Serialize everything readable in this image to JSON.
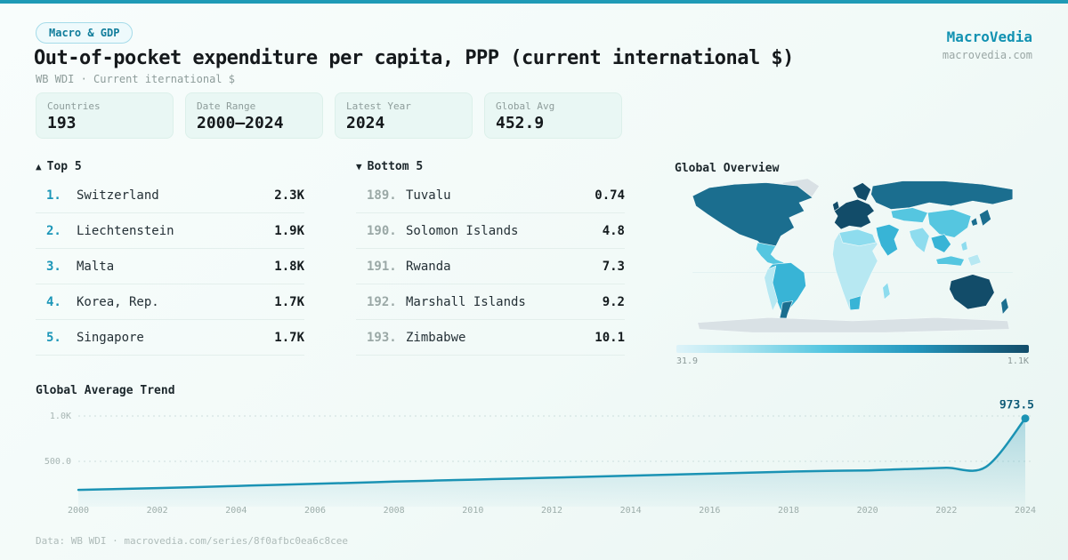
{
  "page": {
    "badge": "Macro & GDP",
    "title": "Out-of-pocket expenditure per capita, PPP (current international $)",
    "subtitle": "WB WDI · Current iternational $",
    "brand": {
      "name": "MacroVedia",
      "domain": "macrovedia.com"
    },
    "footer": {
      "prefix": "Data: WB WDI · ",
      "link": "macrovedia.com/series/8f0afbc0ea6c8cee"
    }
  },
  "stats": [
    {
      "label": "Countries",
      "value": "193"
    },
    {
      "label": "Date Range",
      "value": "2000—2024"
    },
    {
      "label": "Latest Year",
      "value": "2024"
    },
    {
      "label": "Global Avg",
      "value": "452.9"
    }
  ],
  "top5": {
    "marker": "▲",
    "label": "Top 5",
    "rows": [
      {
        "rank": "1.",
        "name": "Switzerland",
        "value": "2.3K"
      },
      {
        "rank": "2.",
        "name": "Liechtenstein",
        "value": "1.9K"
      },
      {
        "rank": "3.",
        "name": "Malta",
        "value": "1.8K"
      },
      {
        "rank": "4.",
        "name": "Korea, Rep.",
        "value": "1.7K"
      },
      {
        "rank": "5.",
        "name": "Singapore",
        "value": "1.7K"
      }
    ]
  },
  "bottom5": {
    "marker": "▼",
    "label": "Bottom 5",
    "rows": [
      {
        "rank": "189.",
        "name": "Tuvalu",
        "value": "0.74"
      },
      {
        "rank": "190.",
        "name": "Solomon Islands",
        "value": "4.8"
      },
      {
        "rank": "191.",
        "name": "Rwanda",
        "value": "7.3"
      },
      {
        "rank": "192.",
        "name": "Marshall Islands",
        "value": "9.2"
      },
      {
        "rank": "193.",
        "name": "Zimbabwe",
        "value": "10.1"
      }
    ]
  },
  "map": {
    "title": "Global Overview",
    "legend_min": "31.9",
    "legend_max": "1.1K"
  },
  "chart_data": {
    "type": "area",
    "title": "Global Average Trend",
    "x": [
      2000,
      2001,
      2002,
      2003,
      2004,
      2005,
      2006,
      2007,
      2008,
      2009,
      2010,
      2011,
      2012,
      2013,
      2014,
      2015,
      2016,
      2017,
      2018,
      2019,
      2020,
      2021,
      2022,
      2023,
      2024
    ],
    "values": [
      185,
      195,
      205,
      216,
      228,
      240,
      252,
      264,
      276,
      287,
      298,
      309,
      320,
      331,
      342,
      353,
      364,
      375,
      386,
      395,
      400,
      415,
      428,
      438,
      973.5
    ],
    "end_label": "973.5",
    "xlabel": "",
    "ylabel": "",
    "ylim": [
      0,
      1100
    ],
    "yticks": [
      {
        "label": "1.0K",
        "value": 1000
      },
      {
        "label": "500.0",
        "value": 500
      }
    ],
    "xticks": [
      2000,
      2002,
      2004,
      2006,
      2008,
      2010,
      2012,
      2014,
      2016,
      2018,
      2020,
      2022,
      2024
    ],
    "grid": "horizontal-dashed",
    "legend": "none"
  },
  "palette": {
    "accent": "#1b96b8",
    "accent_dark": "#0e5a77",
    "top_bar": "#1f9ab6",
    "chart_line": "#1b93b4",
    "badge_text": "#117d9b",
    "map_no_data": "#d9e1e5",
    "map_scale": [
      "#ddf3f9",
      "#b7e8f2",
      "#8edcee",
      "#55c6e0",
      "#38b4d6",
      "#2496bd",
      "#1b6e8f",
      "#124c69"
    ]
  }
}
